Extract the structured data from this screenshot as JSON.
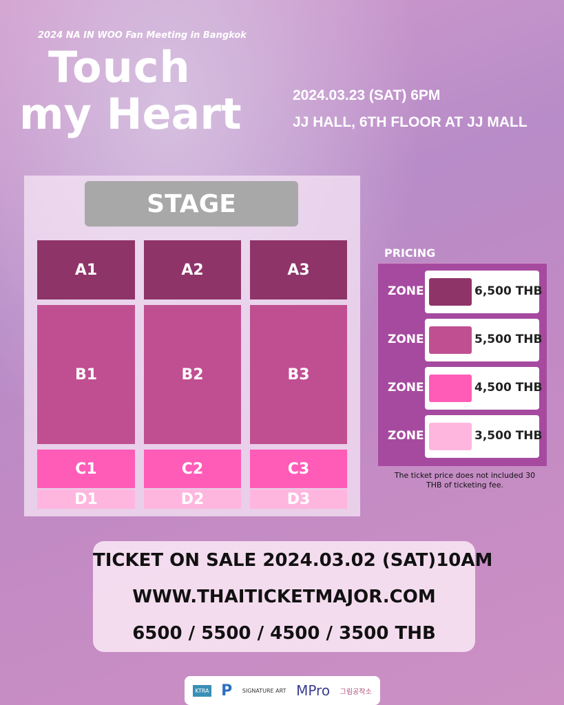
{
  "header": {
    "subtitle": "2024 NA IN WOO Fan Meeting in Bangkok",
    "title_line1": "Touch",
    "title_line2": "my Heart",
    "date": "2024.03.23 (SAT) 6PM",
    "venue": "JJ HALL, 6TH FLOOR AT JJ MALL"
  },
  "seatmap": {
    "stage": "STAGE",
    "zones": [
      {
        "label": "A1",
        "color": "#8f3469"
      },
      {
        "label": "A2",
        "color": "#8f3469"
      },
      {
        "label": "A3",
        "color": "#8f3469"
      },
      {
        "label": "B1",
        "color": "#c04f92"
      },
      {
        "label": "B2",
        "color": "#c04f92"
      },
      {
        "label": "B3",
        "color": "#c04f92"
      },
      {
        "label": "C1",
        "color": "#ff5cb8"
      },
      {
        "label": "C2",
        "color": "#ff5cb8"
      },
      {
        "label": "C3",
        "color": "#ff5cb8"
      },
      {
        "label": "D1",
        "color": "#ffb6de"
      },
      {
        "label": "D2",
        "color": "#ffb6de"
      },
      {
        "label": "D3",
        "color": "#ffb6de"
      }
    ]
  },
  "pricing": {
    "title": "PRICING",
    "rows": [
      {
        "zone": "ZONE",
        "price": "6,500 THB",
        "color": "#8f3469"
      },
      {
        "zone": "ZONE",
        "price": "5,500 THB",
        "color": "#c04f92"
      },
      {
        "zone": "ZONE",
        "price": "4,500 THB",
        "color": "#ff5cb8"
      },
      {
        "zone": "ZONE",
        "price": "3,500 THB",
        "color": "#ffb6de"
      }
    ],
    "note": "The ticket price does not included 30 THB of ticketing fee."
  },
  "ticket": {
    "line1": "TICKET ON SALE 2024.03.02 (SAT)10AM",
    "line2": "WWW.THAITICKETMAJOR.COM",
    "line3": "6500 / 5500 / 4500 / 3500 THB"
  },
  "sponsors": [
    "KTRA",
    "P",
    "SIGNATURE ART",
    "MPro",
    "그림공작소"
  ]
}
